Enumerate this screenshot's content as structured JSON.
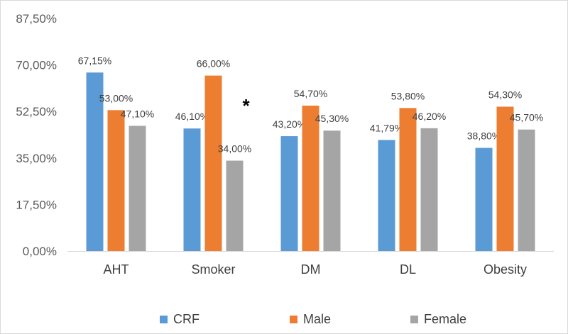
{
  "chart_data": {
    "type": "bar",
    "categories": [
      "AHT",
      "Smoker",
      "DM",
      "DL",
      "Obesity"
    ],
    "series": [
      {
        "name": "CRF",
        "values": [
          67.15,
          46.1,
          43.2,
          41.79,
          38.8
        ],
        "labels": [
          "67,15%",
          "46,10%",
          "43,20%",
          "41,79%",
          "38,80%"
        ],
        "color": "#5b9bd5"
      },
      {
        "name": "Male",
        "values": [
          53.0,
          66.0,
          54.7,
          53.8,
          54.3
        ],
        "labels": [
          "53,00%",
          "66,00%",
          "54,70%",
          "53,80%",
          "54,30%"
        ],
        "color": "#ed7d31"
      },
      {
        "name": "Female",
        "values": [
          47.1,
          34.0,
          45.3,
          46.2,
          45.7
        ],
        "labels": [
          "47,10%",
          "34,00%",
          "45,30%",
          "46,20%",
          "45,70%"
        ],
        "color": "#a5a5a5"
      }
    ],
    "yticks": [
      {
        "value": 0,
        "label": "0,00%"
      },
      {
        "value": 17.5,
        "label": "17,50%"
      },
      {
        "value": 35,
        "label": "35,00%"
      },
      {
        "value": 52.5,
        "label": "52,50%"
      },
      {
        "value": 70,
        "label": "70,00%"
      },
      {
        "value": 87.5,
        "label": "87,50%"
      }
    ],
    "ylim": [
      0,
      87.5
    ],
    "grid": false,
    "legend_position": "bottom",
    "annotations": [
      {
        "text": "*",
        "category": "Smoker",
        "near_series": "Female"
      }
    ]
  }
}
